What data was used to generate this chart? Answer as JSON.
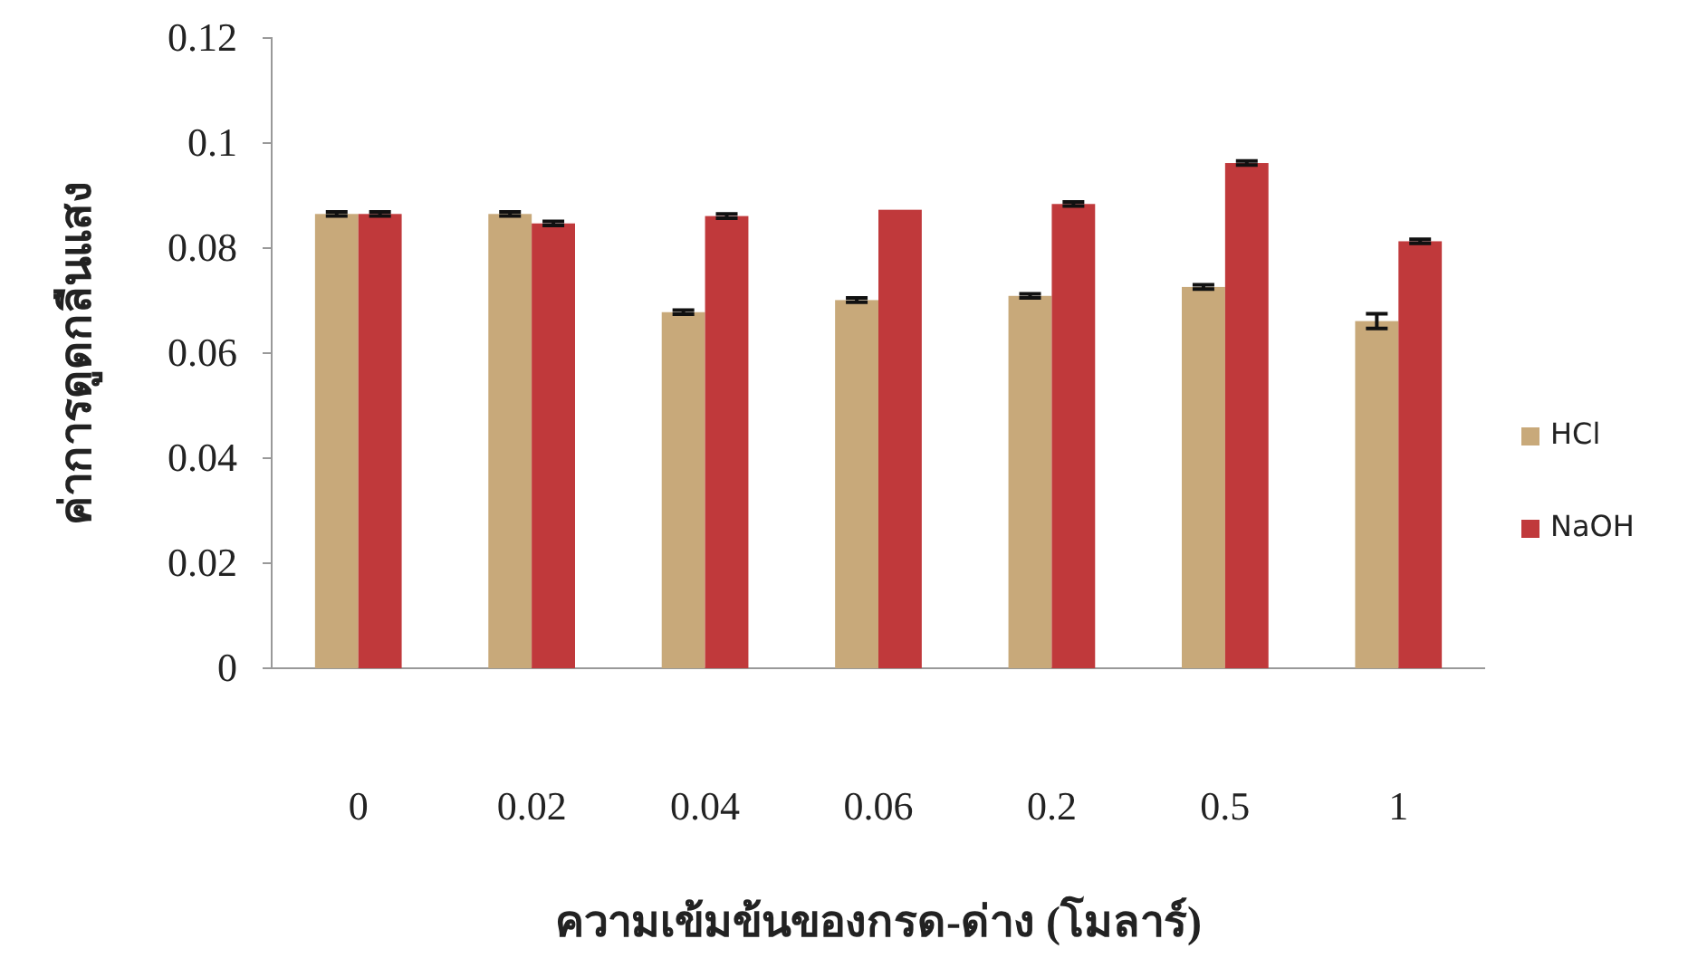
{
  "chart_data": {
    "type": "bar",
    "xlabel": "ความเข้มข้นของกรด-ด่าง (โมลาร์)",
    "ylabel": "ค่าการดูดกลืนแสง",
    "categories": [
      "0",
      "0.02",
      "0.04",
      "0.06",
      "0.2",
      "0.5",
      "1"
    ],
    "series": [
      {
        "name": "HCl",
        "color": "#c8a97a",
        "values": [
          0.0865,
          0.0865,
          0.0678,
          0.0701,
          0.0709,
          0.0726,
          0.0661
        ],
        "errors": [
          0.0004,
          0.0004,
          0.0004,
          0.0004,
          0.0004,
          0.0004,
          0.0014
        ]
      },
      {
        "name": "NaOH",
        "color": "#c0393b",
        "values": [
          0.0865,
          0.0847,
          0.0861,
          0.0873,
          0.0884,
          0.0962,
          0.0813
        ],
        "errors": [
          0.0004,
          0.0004,
          0.0004,
          null,
          0.0004,
          0.0004,
          0.0004
        ]
      }
    ],
    "ylim": [
      0,
      0.12
    ],
    "yticks": [
      0,
      0.02,
      0.04,
      0.06,
      0.08,
      0.1,
      0.12
    ],
    "legend": "right"
  }
}
